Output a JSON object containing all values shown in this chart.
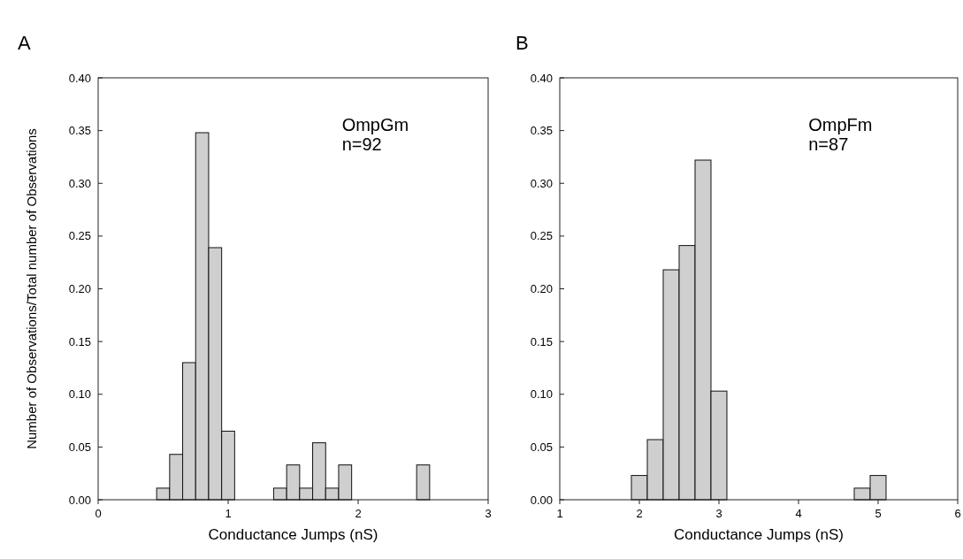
{
  "chart_data": [
    {
      "type": "histogram",
      "title": "A",
      "ylabel": "Number of Observations/Total number of Observations",
      "xlabel": "Conductance Jumps (nS)",
      "annotations": [
        "OmpGm",
        "n=92"
      ],
      "color": "#cfcfcf",
      "bins": [
        0.45,
        0.55,
        0.65,
        0.75,
        0.85,
        0.95,
        1.05,
        1.15,
        1.25,
        1.35,
        1.45,
        1.55,
        1.65,
        1.75,
        1.85,
        1.95,
        2.05,
        2.15,
        2.25,
        2.35,
        2.45,
        2.55
      ],
      "values": [
        0.011,
        0.043,
        0.13,
        0.348,
        0.239,
        0.065,
        0,
        0,
        0,
        0.011,
        0.033,
        0.011,
        0.054,
        0.011,
        0.033,
        0,
        0,
        0,
        0,
        0,
        0.033
      ],
      "xlim": [
        0,
        3
      ],
      "xticks": [
        0,
        1,
        2,
        3
      ],
      "ylim": [
        0,
        0.4
      ],
      "yticks": [
        {
          "value": 0,
          "label": "0.00"
        },
        {
          "value": 0.05,
          "label": "0.05"
        },
        {
          "value": 0.1,
          "label": "0.10"
        },
        {
          "value": 0.15,
          "label": "0.15"
        },
        {
          "value": 0.2,
          "label": "0.20"
        },
        {
          "value": 0.25,
          "label": "0.25"
        },
        {
          "value": 0.3,
          "label": "0.30"
        },
        {
          "value": 0.35,
          "label": "0.35"
        },
        {
          "value": 0.4,
          "label": "0.40"
        }
      ],
      "grid": false
    },
    {
      "type": "histogram",
      "title": "B",
      "xlabel": "Conductance Jumps (nS)",
      "annotations": [
        "OmpFm",
        "n=87"
      ],
      "color": "#cfcfcf",
      "bins": [
        1.9,
        2.1,
        2.3,
        2.5,
        2.7,
        2.9,
        3.1,
        3.3,
        3.5,
        3.7,
        3.9,
        4.1,
        4.3,
        4.5,
        4.7,
        4.9,
        5.1
      ],
      "values": [
        0.023,
        0.057,
        0.218,
        0.241,
        0.322,
        0.103,
        0,
        0,
        0,
        0,
        0,
        0,
        0,
        0,
        0.011,
        0.023
      ],
      "xlim": [
        1,
        6
      ],
      "xticks": [
        1,
        2,
        3,
        4,
        5,
        6
      ],
      "ylim": [
        0,
        0.4
      ],
      "yticks": [
        {
          "value": 0,
          "label": "0.00"
        },
        {
          "value": 0.05,
          "label": "0.05"
        },
        {
          "value": 0.1,
          "label": "0.10"
        },
        {
          "value": 0.15,
          "label": "0.15"
        },
        {
          "value": 0.2,
          "label": "0.20"
        },
        {
          "value": 0.25,
          "label": "0.25"
        },
        {
          "value": 0.3,
          "label": "0.30"
        },
        {
          "value": 0.35,
          "label": "0.35"
        },
        {
          "value": 0.4,
          "label": "0.40"
        }
      ],
      "grid": false
    }
  ]
}
